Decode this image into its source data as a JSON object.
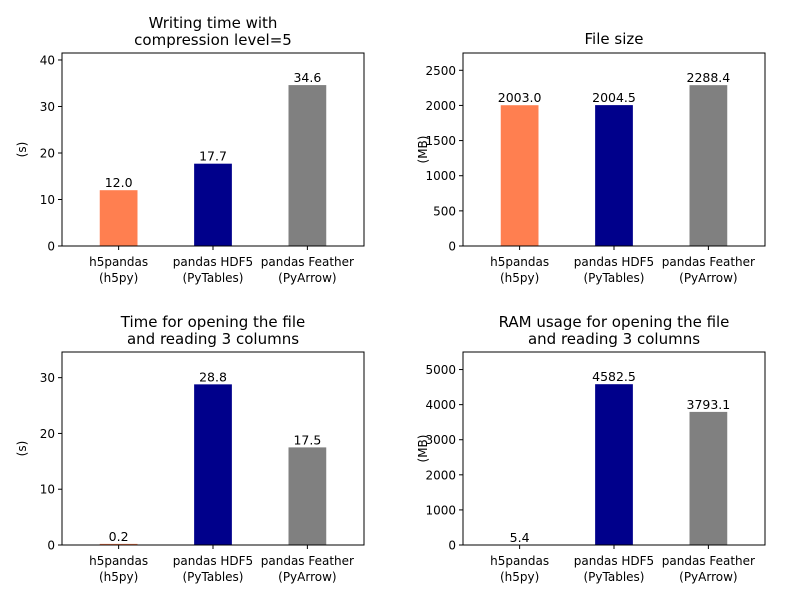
{
  "chart_data": [
    {
      "type": "bar",
      "title": [
        "Writing time with",
        "compression level=5"
      ],
      "ylabel": "(s)",
      "categories": [
        [
          "h5pandas",
          "(h5py)"
        ],
        [
          "pandas HDF5",
          "(PyTables)"
        ],
        [
          "pandas Feather",
          "(PyArrow)"
        ]
      ],
      "values": [
        12.0,
        17.7,
        34.6
      ],
      "value_labels": [
        "12.0",
        "17.7",
        "34.6"
      ],
      "colors": [
        "#ff7f50",
        "#00008b",
        "#808080"
      ],
      "ylim": [
        0,
        41.5
      ],
      "yticks": [
        0,
        10,
        20,
        30,
        40
      ]
    },
    {
      "type": "bar",
      "title": [
        "File size"
      ],
      "ylabel": "(MB)",
      "categories": [
        [
          "h5pandas",
          "(h5py)"
        ],
        [
          "pandas HDF5",
          "(PyTables)"
        ],
        [
          "pandas Feather",
          "(PyArrow)"
        ]
      ],
      "values": [
        2003.0,
        2004.5,
        2288.4
      ],
      "value_labels": [
        "2003.0",
        "2004.5",
        "2288.4"
      ],
      "colors": [
        "#ff7f50",
        "#00008b",
        "#808080"
      ],
      "ylim": [
        0,
        2746
      ],
      "yticks": [
        0,
        500,
        1000,
        1500,
        2000,
        2500
      ]
    },
    {
      "type": "bar",
      "title": [
        "Time for opening the file",
        "and reading 3 columns"
      ],
      "ylabel": "(s)",
      "categories": [
        [
          "h5pandas",
          "(h5py)"
        ],
        [
          "pandas HDF5",
          "(PyTables)"
        ],
        [
          "pandas Feather",
          "(PyArrow)"
        ]
      ],
      "values": [
        0.2,
        28.8,
        17.5
      ],
      "value_labels": [
        "0.2",
        "28.8",
        "17.5"
      ],
      "colors": [
        "#ff7f50",
        "#00008b",
        "#808080"
      ],
      "ylim": [
        0,
        34.6
      ],
      "yticks": [
        0,
        10,
        20,
        30
      ]
    },
    {
      "type": "bar",
      "title": [
        "RAM usage for opening the file",
        "and reading 3 columns"
      ],
      "ylabel": "(MB)",
      "categories": [
        [
          "h5pandas",
          "(h5py)"
        ],
        [
          "pandas HDF5",
          "(PyTables)"
        ],
        [
          "pandas Feather",
          "(PyArrow)"
        ]
      ],
      "values": [
        5.4,
        4582.5,
        3793.1
      ],
      "value_labels": [
        "5.4",
        "4582.5",
        "3793.1"
      ],
      "colors": [
        "#ff7f50",
        "#00008b",
        "#808080"
      ],
      "ylim": [
        0,
        5500
      ],
      "yticks": [
        0,
        1000,
        2000,
        3000,
        4000,
        5000
      ]
    }
  ]
}
